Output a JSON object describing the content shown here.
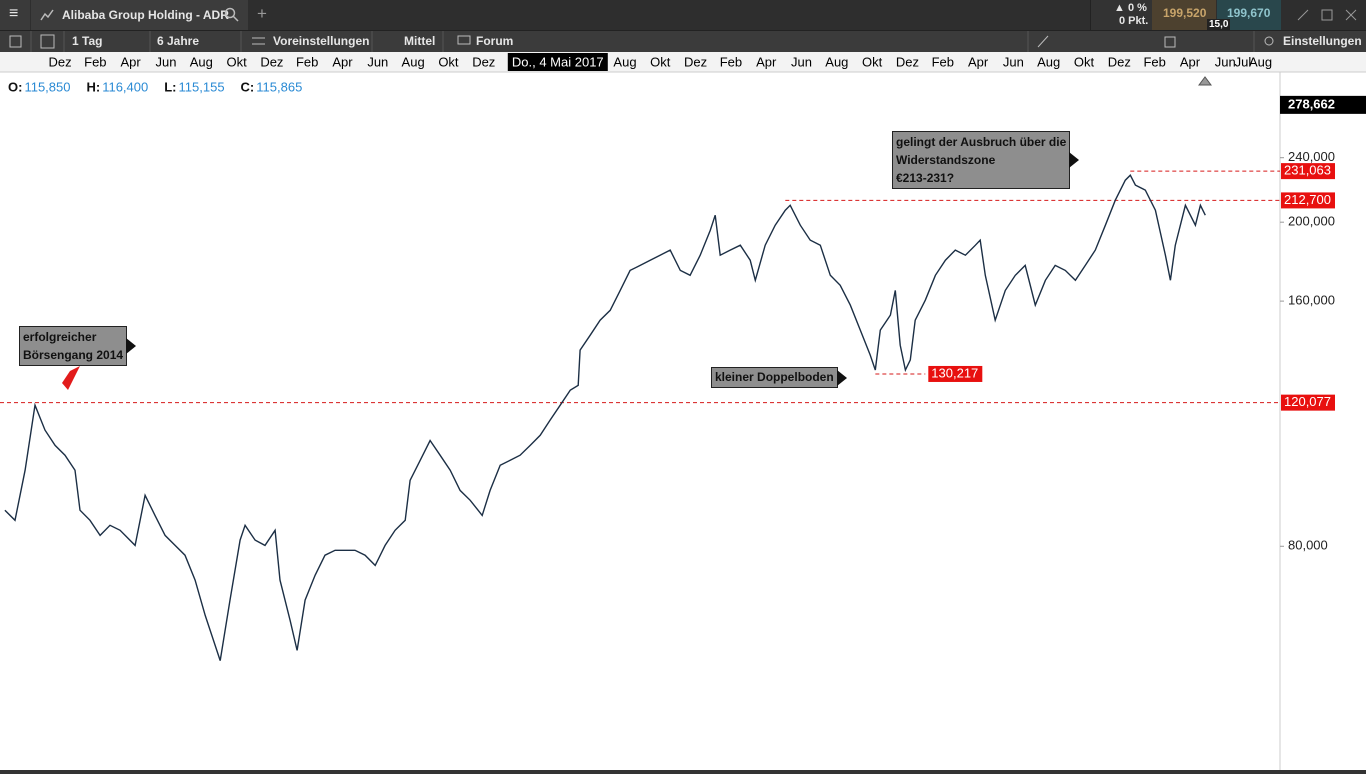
{
  "toolbar": {
    "menu": "≡",
    "tab_title": "Alibaba Group Holding - ADR",
    "add": "+",
    "change_pct": "▲ 0 %",
    "change_pts": "0 Pkt.",
    "bid": "199,520",
    "ask": "199,670",
    "spread": "15,0"
  },
  "controls": {
    "interval": "1 Tag",
    "range": "6 Jahre",
    "presets": "Voreinstellungen",
    "indicator": "Mittel",
    "forum": "Forum",
    "settings": "Einstellungen"
  },
  "ohlc": [
    {
      "label": "O:",
      "value": "115,850"
    },
    {
      "label": "H:",
      "value": "116,400"
    },
    {
      "label": "L:",
      "value": "115,155"
    },
    {
      "label": "C:",
      "value": "115,865"
    }
  ],
  "chart_data": {
    "type": "line",
    "color": "#1c2f45",
    "log_y": true,
    "x": [
      -0.12,
      0.45,
      1.02,
      1.58,
      2.15,
      2.72,
      3.28,
      3.85,
      4.13,
      4.7,
      5.27,
      5.83,
      6.4,
      7.25,
      7.82,
      8.38,
      8.95,
      9.52,
      10.08,
      10.65,
      11.22,
      12.07,
      12.63,
      13.2,
      13.48,
      14.05,
      14.61,
      15.18,
      15.46,
      16.03,
      16.43,
      16.88,
      17.45,
      18.01,
      18.58,
      19.15,
      19.71,
      20.28,
      20.85,
      21.41,
      21.98,
      22.55,
      22.83,
      23.4,
      23.96,
      24.53,
      25.1,
      25.66,
      26.23,
      26.91,
      27.36,
      27.93,
      28.5,
      29.06,
      29.63,
      30.2,
      30.76,
      31.33,
      31.9,
      32.35,
      32.46,
      33.03,
      33.59,
      34.16,
      34.73,
      35.29,
      35.86,
      36.43,
      36.99,
      37.56,
      38.13,
      38.69,
      39.26,
      39.83,
      40.11,
      40.39,
      40.96,
      41.53,
      42.09,
      42.38,
      42.94,
      43.51,
      44.08,
      44.36,
      44.93,
      45.49,
      46.06,
      46.63,
      47.19,
      47.76,
      48.33,
      48.89,
      49.18,
      49.46,
      50.03,
      50.31,
      50.59,
      50.88,
      51.16,
      51.44,
      52.01,
      52.58,
      53.15,
      53.71,
      54.28,
      54.85,
      55.12,
      55.41,
      55.97,
      56.54,
      57.11,
      57.67,
      58.24,
      58.81,
      59.37,
      59.94,
      60.51,
      61.07,
      61.64,
      62.21,
      62.77,
      63.34,
      63.62,
      63.91,
      64.47,
      65.04,
      65.61,
      65.89,
      66.17,
      66.74,
      67.31,
      67.59,
      67.87
    ],
    "values": [
      88.6,
      86.1,
      99.2,
      119.2,
      111.1,
      106.4,
      103.5,
      99.2,
      88.6,
      86.1,
      82.5,
      84.9,
      83.7,
      80.2,
      92.4,
      87.3,
      82.5,
      80.2,
      78.0,
      72.7,
      65.8,
      57.9,
      68.7,
      81.4,
      84.9,
      81.4,
      80.2,
      83.7,
      72.7,
      64.9,
      59.6,
      68.7,
      73.7,
      78.0,
      79.1,
      79.1,
      79.1,
      78.0,
      75.8,
      80.2,
      83.7,
      86.1,
      96.4,
      102.0,
      107.9,
      103.5,
      99.2,
      93.7,
      91.1,
      87.3,
      93.7,
      100.6,
      102.0,
      103.5,
      106.4,
      109.5,
      114.3,
      119.2,
      124.4,
      126.1,
      139.3,
      145.3,
      151.6,
      155.9,
      164.9,
      174.5,
      177.0,
      179.6,
      182.2,
      184.8,
      174.5,
      172.1,
      182.2,
      195.5,
      204.0,
      182.2,
      184.8,
      187.4,
      179.6,
      169.7,
      187.4,
      198.3,
      206.9,
      209.8,
      198.3,
      190.1,
      187.4,
      172.1,
      167.3,
      158.2,
      147.4,
      137.4,
      131.7,
      147.4,
      153.8,
      164.9,
      141.3,
      131.7,
      135.5,
      151.6,
      160.4,
      172.1,
      179.6,
      184.8,
      182.2,
      187.4,
      190.1,
      172.1,
      151.6,
      164.9,
      172.1,
      177.0,
      158.2,
      169.7,
      177.0,
      174.5,
      169.7,
      177.0,
      184.8,
      198.3,
      212.8,
      225.2,
      228.4,
      222.1,
      219.0,
      206.9,
      182.2,
      169.7,
      187.4,
      209.8,
      198.3,
      209.8,
      204.0
    ],
    "xlim": [
      -0.4,
      72.1
    ],
    "xticks": [
      {
        "value": 3,
        "label": "Dez"
      },
      {
        "value": 5,
        "label": "Feb"
      },
      {
        "value": 7,
        "label": "Apr"
      },
      {
        "value": 9,
        "label": "Jun"
      },
      {
        "value": 11,
        "label": "Aug"
      },
      {
        "value": 13,
        "label": "Okt"
      },
      {
        "value": 15,
        "label": "Dez"
      },
      {
        "value": 17,
        "label": "Feb"
      },
      {
        "value": 19,
        "label": "Apr"
      },
      {
        "value": 21,
        "label": "Jun"
      },
      {
        "value": 23,
        "label": "Aug"
      },
      {
        "value": 25,
        "label": "Okt"
      },
      {
        "value": 27,
        "label": "Dez"
      },
      {
        "value": 35,
        "label": "Aug"
      },
      {
        "value": 37,
        "label": "Okt"
      },
      {
        "value": 39,
        "label": "Dez"
      },
      {
        "value": 41,
        "label": "Feb"
      },
      {
        "value": 43,
        "label": "Apr"
      },
      {
        "value": 45,
        "label": "Jun"
      },
      {
        "value": 47,
        "label": "Aug"
      },
      {
        "value": 49,
        "label": "Okt"
      },
      {
        "value": 51,
        "label": "Dez"
      },
      {
        "value": 53,
        "label": "Feb"
      },
      {
        "value": 55,
        "label": "Apr"
      },
      {
        "value": 57,
        "label": "Jun"
      },
      {
        "value": 59,
        "label": "Aug"
      },
      {
        "value": 61,
        "label": "Okt"
      },
      {
        "value": 63,
        "label": "Dez"
      },
      {
        "value": 65,
        "label": "Feb"
      },
      {
        "value": 67,
        "label": "Apr"
      },
      {
        "value": 69,
        "label": "Jun"
      },
      {
        "value": 70,
        "label": "Jul"
      },
      {
        "value": 71,
        "label": "Aug"
      }
    ],
    "ylim": [
      42.5,
      305.8
    ],
    "yticks": [
      {
        "value": 80,
        "label": "80,000"
      },
      {
        "value": 160,
        "label": "160,000"
      },
      {
        "value": 200,
        "label": "200,000"
      },
      {
        "value": 240,
        "label": "240,000"
      }
    ],
    "crosshair": {
      "x": 32.1,
      "x_label": "Do., 4 Mai 2017",
      "y": 278.662,
      "y_label": "278,662"
    },
    "levels": [
      {
        "value": 120.077,
        "label": "120,077"
      },
      {
        "value": 130.217,
        "label": "130,217",
        "x_from": 49.18,
        "x_to": 52.01
      },
      {
        "value": 212.7,
        "label": "212,700",
        "x_from": 44.08
      },
      {
        "value": 231.063,
        "label": "231,063",
        "x_from": 63.62
      }
    ],
    "annotations": [
      {
        "lines": [
          "erfolgreicher",
          "Börsengang 2014"
        ]
      },
      {
        "lines": [
          "kleiner Doppelboden"
        ]
      },
      {
        "lines": [
          "gelingt der Ausbruch über die",
          "Widerstandszone",
          "€213-231?"
        ]
      }
    ]
  }
}
